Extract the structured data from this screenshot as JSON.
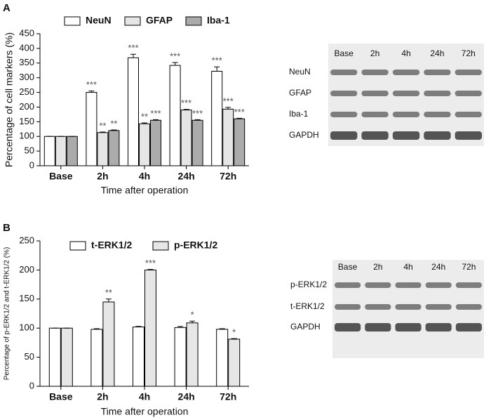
{
  "chart_data": [
    {
      "type": "bar",
      "panel_label": "A",
      "y_label": "Percentage of cell markers (%)",
      "x_label": "Time after operation",
      "categories": [
        "Base",
        "2h",
        "4h",
        "24h",
        "72h"
      ],
      "ylim": [
        0,
        450
      ],
      "yticks": [
        0,
        50,
        100,
        150,
        200,
        250,
        300,
        350,
        400,
        450
      ],
      "series": [
        {
          "name": "NeuN",
          "color": "#ffffff",
          "values": [
            100,
            250,
            368,
            342,
            322
          ],
          "errors": [
            0,
            5,
            12,
            10,
            15
          ],
          "significance": [
            null,
            "***",
            "***",
            "***",
            "***"
          ]
        },
        {
          "name": "GFAP",
          "color": "#e6e6e6",
          "values": [
            100,
            113,
            143,
            190,
            193
          ],
          "errors": [
            0,
            2,
            3,
            2,
            6
          ],
          "significance": [
            null,
            "**",
            "**",
            "***",
            "***"
          ]
        },
        {
          "name": "Iba-1",
          "color": "#ababab",
          "values": [
            100,
            120,
            155,
            155,
            160
          ],
          "errors": [
            0,
            2,
            2,
            2,
            2
          ],
          "significance": [
            null,
            "**",
            "***",
            "***",
            "***"
          ]
        }
      ],
      "blot": {
        "lanes": [
          "Base",
          "2h",
          "4h",
          "24h",
          "72h"
        ],
        "rows": [
          "NeuN",
          "GFAP",
          "Iba-1",
          "GAPDH"
        ]
      }
    },
    {
      "type": "bar",
      "panel_label": "B",
      "y_label": "Percentage of p-ERK1/2 and t-ERK1/2 (%)",
      "x_label": "Time after operation",
      "categories": [
        "Base",
        "2h",
        "4h",
        "24h",
        "72h"
      ],
      "ylim": [
        0,
        250
      ],
      "yticks": [
        0,
        50,
        100,
        150,
        200,
        250
      ],
      "series": [
        {
          "name": "t-ERK1/2",
          "color": "#ffffff",
          "values": [
            100,
            98,
            102,
            101,
            98
          ],
          "errors": [
            0,
            1,
            1,
            2,
            1
          ],
          "significance": [
            null,
            null,
            null,
            null,
            null
          ]
        },
        {
          "name": "p-ERK1/2",
          "color": "#e6e6e6",
          "values": [
            100,
            145,
            200,
            109,
            81
          ],
          "errors": [
            0,
            5,
            1,
            3,
            1
          ],
          "significance": [
            null,
            "**",
            "***",
            "*",
            "*"
          ]
        }
      ],
      "blot": {
        "lanes": [
          "Base",
          "2h",
          "4h",
          "24h",
          "72h"
        ],
        "rows": [
          "p-ERK1/2",
          "t-ERK1/2",
          "GAPDH"
        ]
      }
    }
  ]
}
